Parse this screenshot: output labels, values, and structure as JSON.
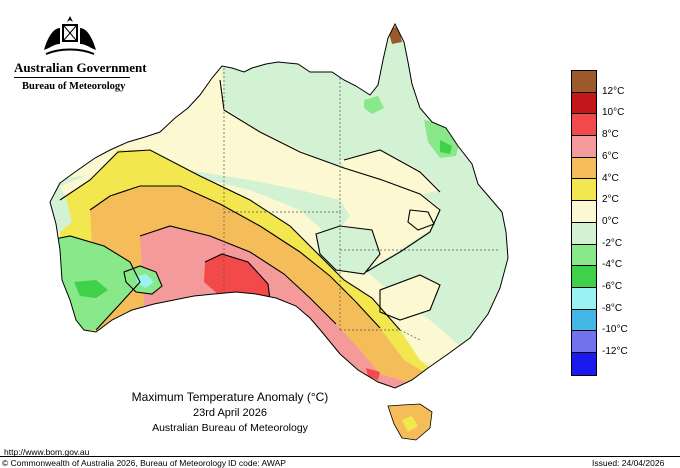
{
  "header": {
    "government": "Australian Government",
    "bureau": "Bureau of Meteorology"
  },
  "title": {
    "line1": "Maximum Temperature Anomaly (°C)",
    "line2": "23rd April 2026",
    "line3": "Australian Bureau of Meteorology"
  },
  "url": "http://www.bom.gov.au",
  "footer": {
    "copyright": "© Commonwealth of Australia 2026, Bureau of Meteorology",
    "id_code": "ID code: AWAP",
    "issued": "Issued: 24/04/2026"
  },
  "legend": {
    "items": [
      {
        "label": "12°C",
        "color": "#9c5a2b"
      },
      {
        "label": "10°C",
        "color": "#c2181b"
      },
      {
        "label": "8°C",
        "color": "#f24a4a"
      },
      {
        "label": "6°C",
        "color": "#f59a9a"
      },
      {
        "label": "4°C",
        "color": "#f5bd5a"
      },
      {
        "label": "2°C",
        "color": "#f2e74e"
      },
      {
        "label": "0°C",
        "color": "#fbf8d2"
      },
      {
        "label": "-2°C",
        "color": "#d3f2d3"
      },
      {
        "label": "-4°C",
        "color": "#88e88a"
      },
      {
        "label": "-6°C",
        "color": "#3fd14a"
      },
      {
        "label": "-8°C",
        "color": "#9bf2f2"
      },
      {
        "label": "-10°C",
        "color": "#45b7e6"
      },
      {
        "label": "-12°C",
        "color": "#7272ee"
      },
      {
        "label": "",
        "color": "#1a1aee"
      }
    ]
  }
}
